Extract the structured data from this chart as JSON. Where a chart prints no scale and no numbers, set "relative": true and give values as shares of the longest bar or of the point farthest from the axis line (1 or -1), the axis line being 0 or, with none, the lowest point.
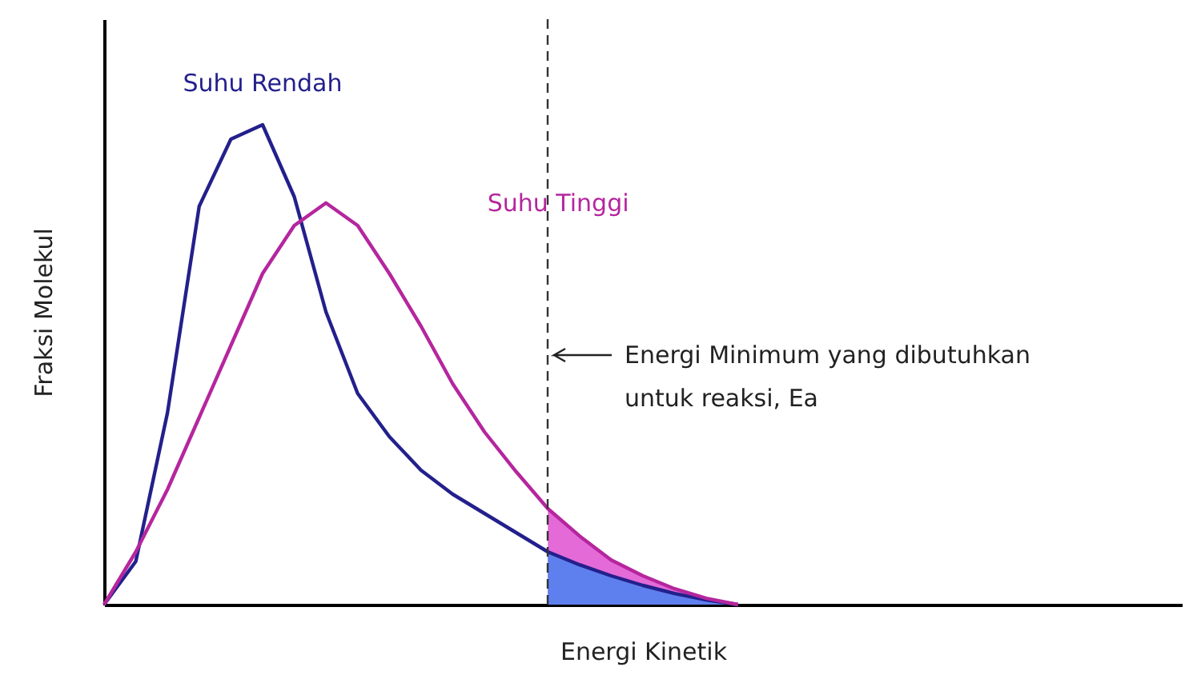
{
  "chart_data": {
    "type": "line",
    "relative": true,
    "xlabel": "Energi Kinetik",
    "ylabel": "Fraksi Molekul",
    "categories": [
      null,
      null,
      null,
      null,
      null,
      null,
      null,
      null,
      null,
      null,
      null,
      null,
      null,
      null,
      null,
      null,
      null,
      null,
      null,
      null,
      null,
      null,
      null,
      null,
      null,
      null,
      null,
      null,
      null,
      null,
      null,
      null,
      null,
      null,
      null
    ],
    "series": [
      {
        "type": "area",
        "color": "#e46ad8",
        "values": [
          null,
          null,
          null,
          null,
          null,
          null,
          null,
          null,
          null,
          null,
          null,
          null,
          null,
          null,
          0.2,
          0.143,
          0.093,
          0.06,
          0.033,
          0.013,
          0,
          null,
          null,
          null,
          null,
          null,
          null,
          null,
          null,
          null,
          null,
          null,
          null,
          null,
          null
        ]
      },
      {
        "type": "area",
        "color": "#5e80ee",
        "values": [
          null,
          null,
          null,
          null,
          null,
          null,
          null,
          null,
          null,
          null,
          null,
          null,
          null,
          null,
          0.11,
          0.083,
          0.06,
          0.04,
          0.023,
          0.01,
          0,
          null,
          null,
          null,
          null,
          null,
          null,
          null,
          null,
          null,
          null,
          null,
          null,
          null,
          null
        ]
      },
      {
        "name": "Suhu Rendah",
        "color": "#23208c",
        "values": [
          0,
          0.09,
          0.4,
          0.83,
          0.97,
          1.0,
          0.85,
          0.61,
          0.44,
          0.35,
          0.28,
          0.23,
          0.19,
          0.15,
          0.11,
          0.083,
          0.06,
          0.04,
          0.023,
          0.01,
          0,
          null,
          null,
          null,
          null,
          null,
          null,
          null,
          null,
          null,
          null,
          null,
          null,
          null,
          null
        ]
      },
      {
        "name": "Suhu Tinggi",
        "color": "#b5269e",
        "values": [
          0,
          0.11,
          0.24,
          0.39,
          0.54,
          0.69,
          0.79,
          0.837,
          0.79,
          0.69,
          0.58,
          0.46,
          0.36,
          0.277,
          0.2,
          0.143,
          0.093,
          0.06,
          0.033,
          0.013,
          0,
          null,
          null,
          null,
          null,
          null,
          null,
          null,
          null,
          null,
          null,
          null,
          null,
          null,
          null
        ]
      }
    ],
    "annotations": [
      "Energi Minimum yang dibutuhkan\nuntuk reaksi, Ea"
    ]
  }
}
